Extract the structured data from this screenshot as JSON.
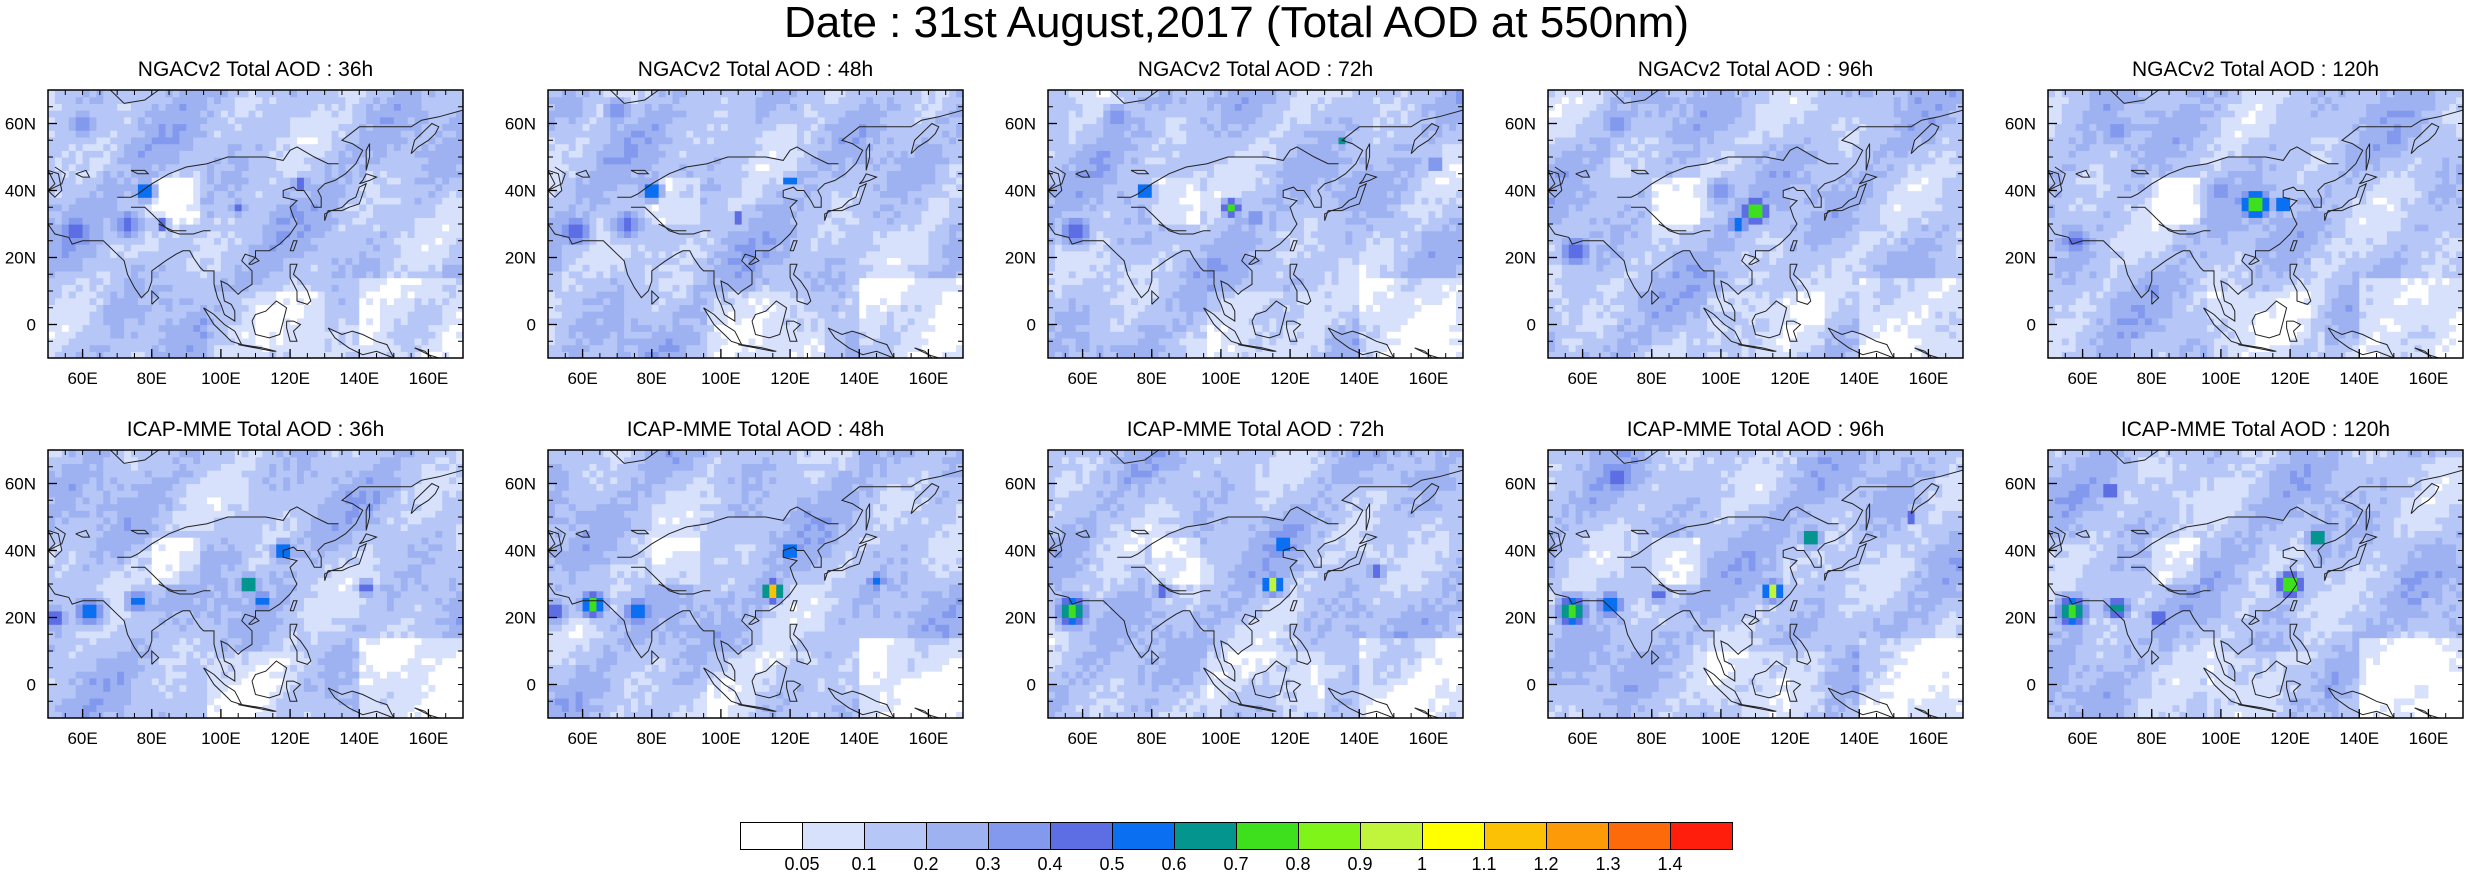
{
  "title": "Date : 31st August,2017 (Total AOD at 550nm)",
  "panels": [
    {
      "title": "NGACv2 Total AOD : 36h",
      "row": 0,
      "col": 0
    },
    {
      "title": "NGACv2 Total AOD : 48h",
      "row": 0,
      "col": 1
    },
    {
      "title": "NGACv2 Total AOD : 72h",
      "row": 0,
      "col": 2
    },
    {
      "title": "NGACv2 Total AOD : 96h",
      "row": 0,
      "col": 3
    },
    {
      "title": "NGACv2 Total AOD : 120h",
      "row": 0,
      "col": 4
    },
    {
      "title": "ICAP-MME Total AOD : 36h",
      "row": 1,
      "col": 0
    },
    {
      "title": "ICAP-MME Total AOD : 48h",
      "row": 1,
      "col": 1
    },
    {
      "title": "ICAP-MME Total AOD : 72h",
      "row": 1,
      "col": 2
    },
    {
      "title": "ICAP-MME Total AOD : 96h",
      "row": 1,
      "col": 3
    },
    {
      "title": "ICAP-MME Total AOD : 120h",
      "row": 1,
      "col": 4
    }
  ],
  "axes": {
    "lat_ticks": [
      "0",
      "20N",
      "40N",
      "60N"
    ],
    "lon_ticks": [
      "60E",
      "80E",
      "100E",
      "120E",
      "140E",
      "160E"
    ],
    "lon_range": [
      50,
      170
    ],
    "lat_range": [
      -10,
      70
    ]
  },
  "colorbar": {
    "labels": [
      "0.05",
      "0.1",
      "0.2",
      "0.3",
      "0.4",
      "0.5",
      "0.6",
      "0.7",
      "0.8",
      "0.9",
      "1",
      "1.1",
      "1.2",
      "1.3",
      "1.4"
    ],
    "colors": [
      "#ffffff",
      "#d7e1fb",
      "#b6c6f6",
      "#9eb2f2",
      "#8299ed",
      "#5d6ee4",
      "#0a6ff0",
      "#05958f",
      "#3ee01d",
      "#7ff419",
      "#c1f53b",
      "#ffff00",
      "#fcc104",
      "#fd9a07",
      "#fc6a0a",
      "#ff1d0c"
    ]
  }
}
